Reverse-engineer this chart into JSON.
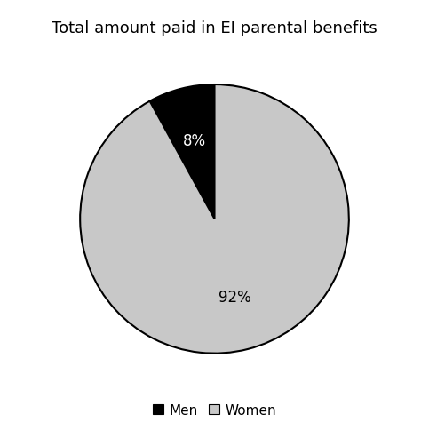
{
  "title": "Total amount paid in EI parental benefits",
  "slices": [
    8,
    92
  ],
  "labels": [
    "Men",
    "Women"
  ],
  "colors": [
    "#000000",
    "#c8c8c8"
  ],
  "autopct_colors": [
    "#ffffff",
    "#000000"
  ],
  "legend_labels": [
    "Men",
    "Women"
  ],
  "startangle": 90,
  "title_fontsize": 13,
  "autopct_fontsize": 12,
  "legend_fontsize": 11
}
